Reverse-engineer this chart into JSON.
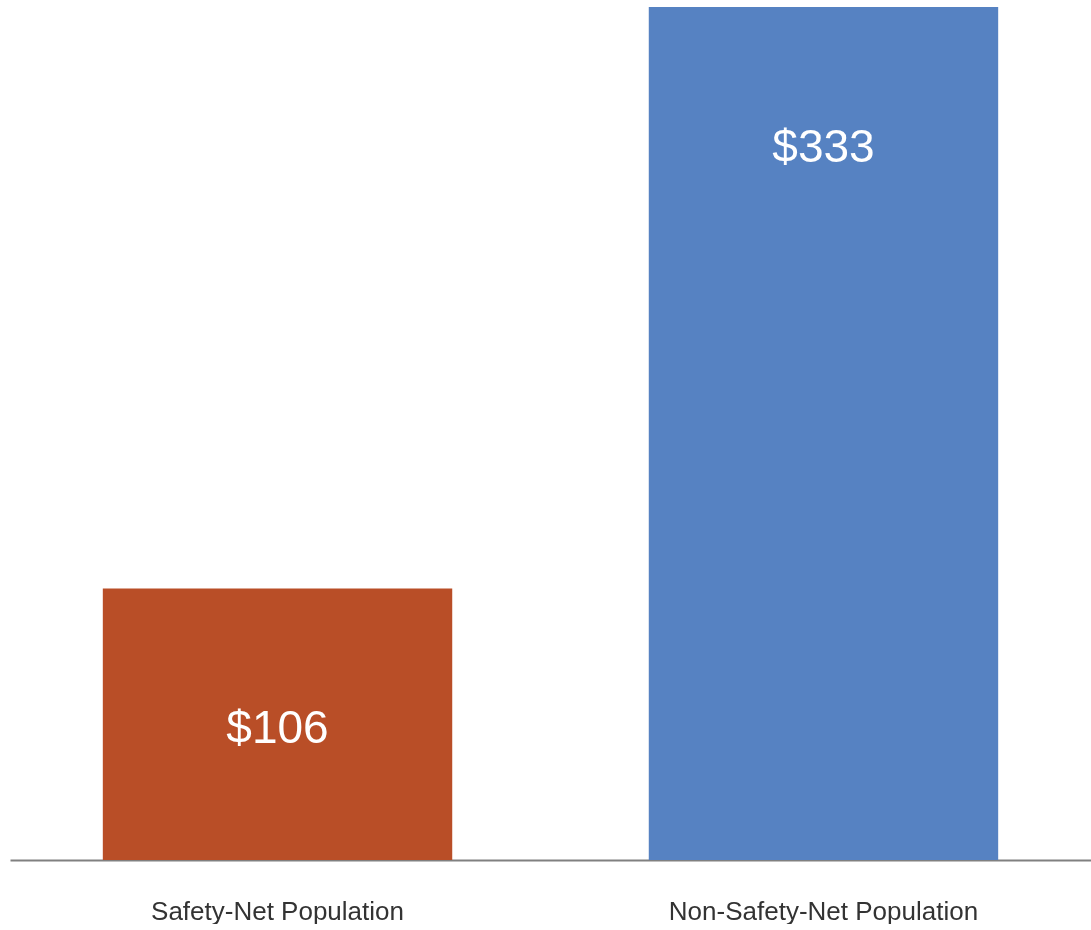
{
  "chart_data": {
    "type": "bar",
    "categories": [
      "Safety-Net Population",
      "Non-Safety-Net Population"
    ],
    "values": [
      106,
      333
    ],
    "colors": [
      "#b94e27",
      "#5682c2"
    ],
    "value_labels": [
      "$106",
      "$333"
    ]
  }
}
